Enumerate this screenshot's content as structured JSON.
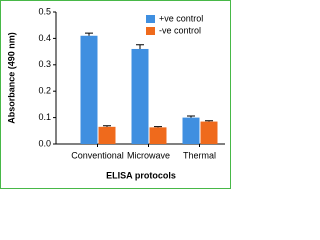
{
  "chart_data": {
    "type": "bar",
    "x_label": "ELISA protocols",
    "y_label": "Absorbance (490 nm)",
    "categories": [
      "Conventional",
      "Microwave",
      "Thermal"
    ],
    "series": [
      {
        "name": "+ve control",
        "color": "#3f8fe0",
        "values": [
          0.41,
          0.36,
          0.1
        ],
        "errors": [
          0.01,
          0.016,
          0.006
        ]
      },
      {
        "name": "-ve control",
        "color": "#ef6a1c",
        "values": [
          0.065,
          0.063,
          0.085
        ],
        "errors": [
          0.004,
          0.003,
          0.003
        ]
      }
    ],
    "ylim": [
      0,
      0.5
    ],
    "yticks": [
      {
        "value": 0,
        "label": "0.0"
      },
      0.1,
      0.2,
      0.3,
      0.4,
      0.5
    ],
    "legend": "top-right"
  }
}
